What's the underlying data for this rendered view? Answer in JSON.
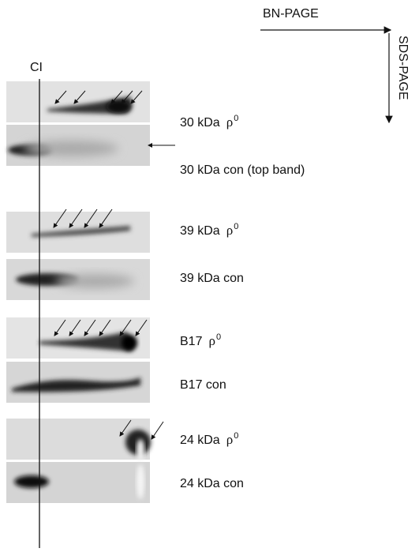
{
  "header": {
    "horizontal_direction": "BN-PAGE",
    "vertical_direction": "SDS-PAGE",
    "marker": "CI"
  },
  "panels": [
    {
      "label": "30 kDa",
      "symbol": "ρ",
      "superscript": "0"
    },
    {
      "label": "30 kDa con (top band)"
    },
    {
      "label": "39 kDa",
      "symbol": "ρ",
      "superscript": "0"
    },
    {
      "label": "39 kDa con"
    },
    {
      "label": "B17",
      "symbol": "ρ",
      "superscript": "0"
    },
    {
      "label": "B17 con"
    },
    {
      "label": "24 kDa",
      "symbol": "ρ",
      "superscript": "0"
    },
    {
      "label": "24 kDa  con"
    }
  ]
}
